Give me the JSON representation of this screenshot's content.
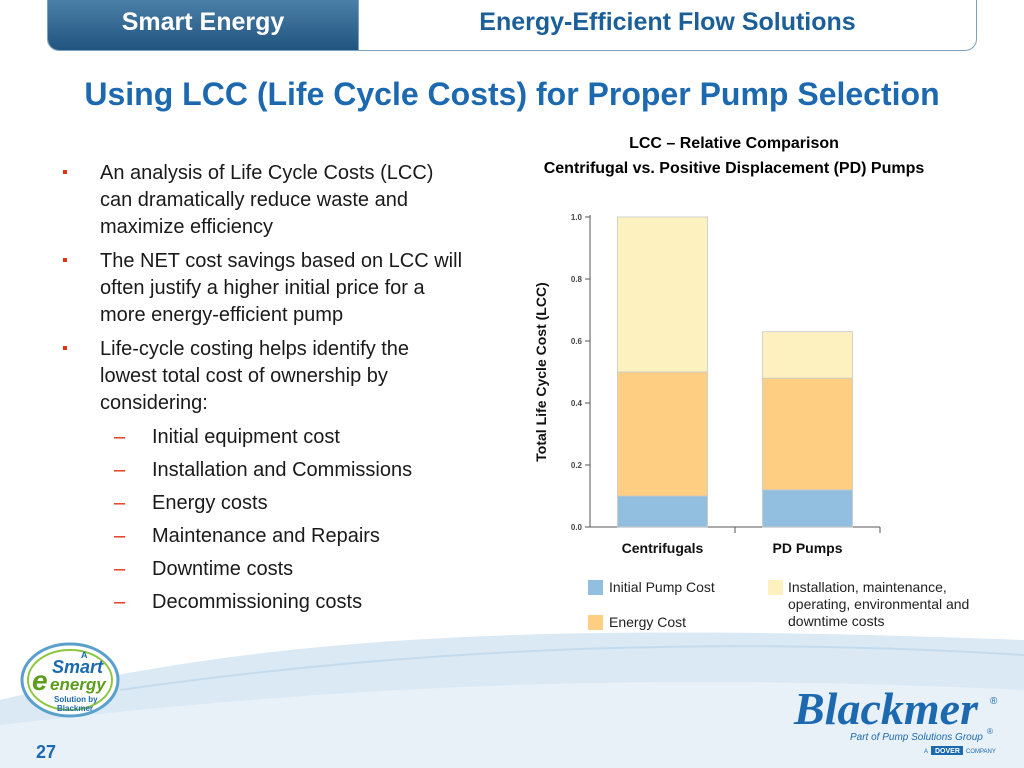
{
  "header": {
    "left": "Smart Energy",
    "right": "Energy-Efficient Flow Solutions"
  },
  "title": "Using LCC (Life Cycle Costs) for Proper Pump Selection",
  "bullets": [
    "An analysis of Life Cycle Costs (LCC) can dramatically reduce waste and maximize efficiency",
    "The NET cost savings based on LCC will often justify a higher initial price for a more energy-efficient pump",
    "Life-cycle costing helps identify the lowest total cost of ownership by considering:"
  ],
  "sub_items": [
    "Initial equipment cost",
    "Installation and Commissions",
    "Energy costs",
    "Maintenance and Repairs",
    "Downtime costs",
    "Decommissioning costs"
  ],
  "chart_data": {
    "type": "bar",
    "stacked": true,
    "title": "LCC – Relative Comparison",
    "subtitle": "Centrifugal vs. Positive Displacement (PD) Pumps",
    "ylabel": "Total Life Cycle Cost (LCC)",
    "xlabel": "",
    "ylim": [
      0,
      1.0
    ],
    "yticks": [
      "0.0",
      "0.2",
      "0.4",
      "0.6",
      "0.8",
      "1.0"
    ],
    "categories": [
      "Centrifugals",
      "PD Pumps"
    ],
    "series": [
      {
        "name": "Initial Pump Cost",
        "values": [
          0.1,
          0.12
        ],
        "color": "#92bfe0"
      },
      {
        "name": "Energy Cost",
        "values": [
          0.4,
          0.36
        ],
        "color": "#fecf83"
      },
      {
        "name": "Installation, maintenance, operating, environmental and downtime costs",
        "values": [
          0.5,
          0.15
        ],
        "color": "#fef1c0"
      }
    ],
    "legend_position": "bottom"
  },
  "logo_left": {
    "a": "A",
    "smart": "Smart",
    "energy": "energy",
    "tag1": "Solution by",
    "tag2": "Blackmer"
  },
  "logo_right": {
    "brand": "Blackmer",
    "reg": "®",
    "tagline": "Part of Pump Solutions Group",
    "tag_reg": "®",
    "dover_a": "A",
    "dover": "DOVER",
    "dover_company": "COMPANY"
  },
  "page_number": "27",
  "colors": {
    "title_blue": "#1c69b0",
    "header_blue": "#21557f",
    "bullet_red": "#e03010"
  }
}
